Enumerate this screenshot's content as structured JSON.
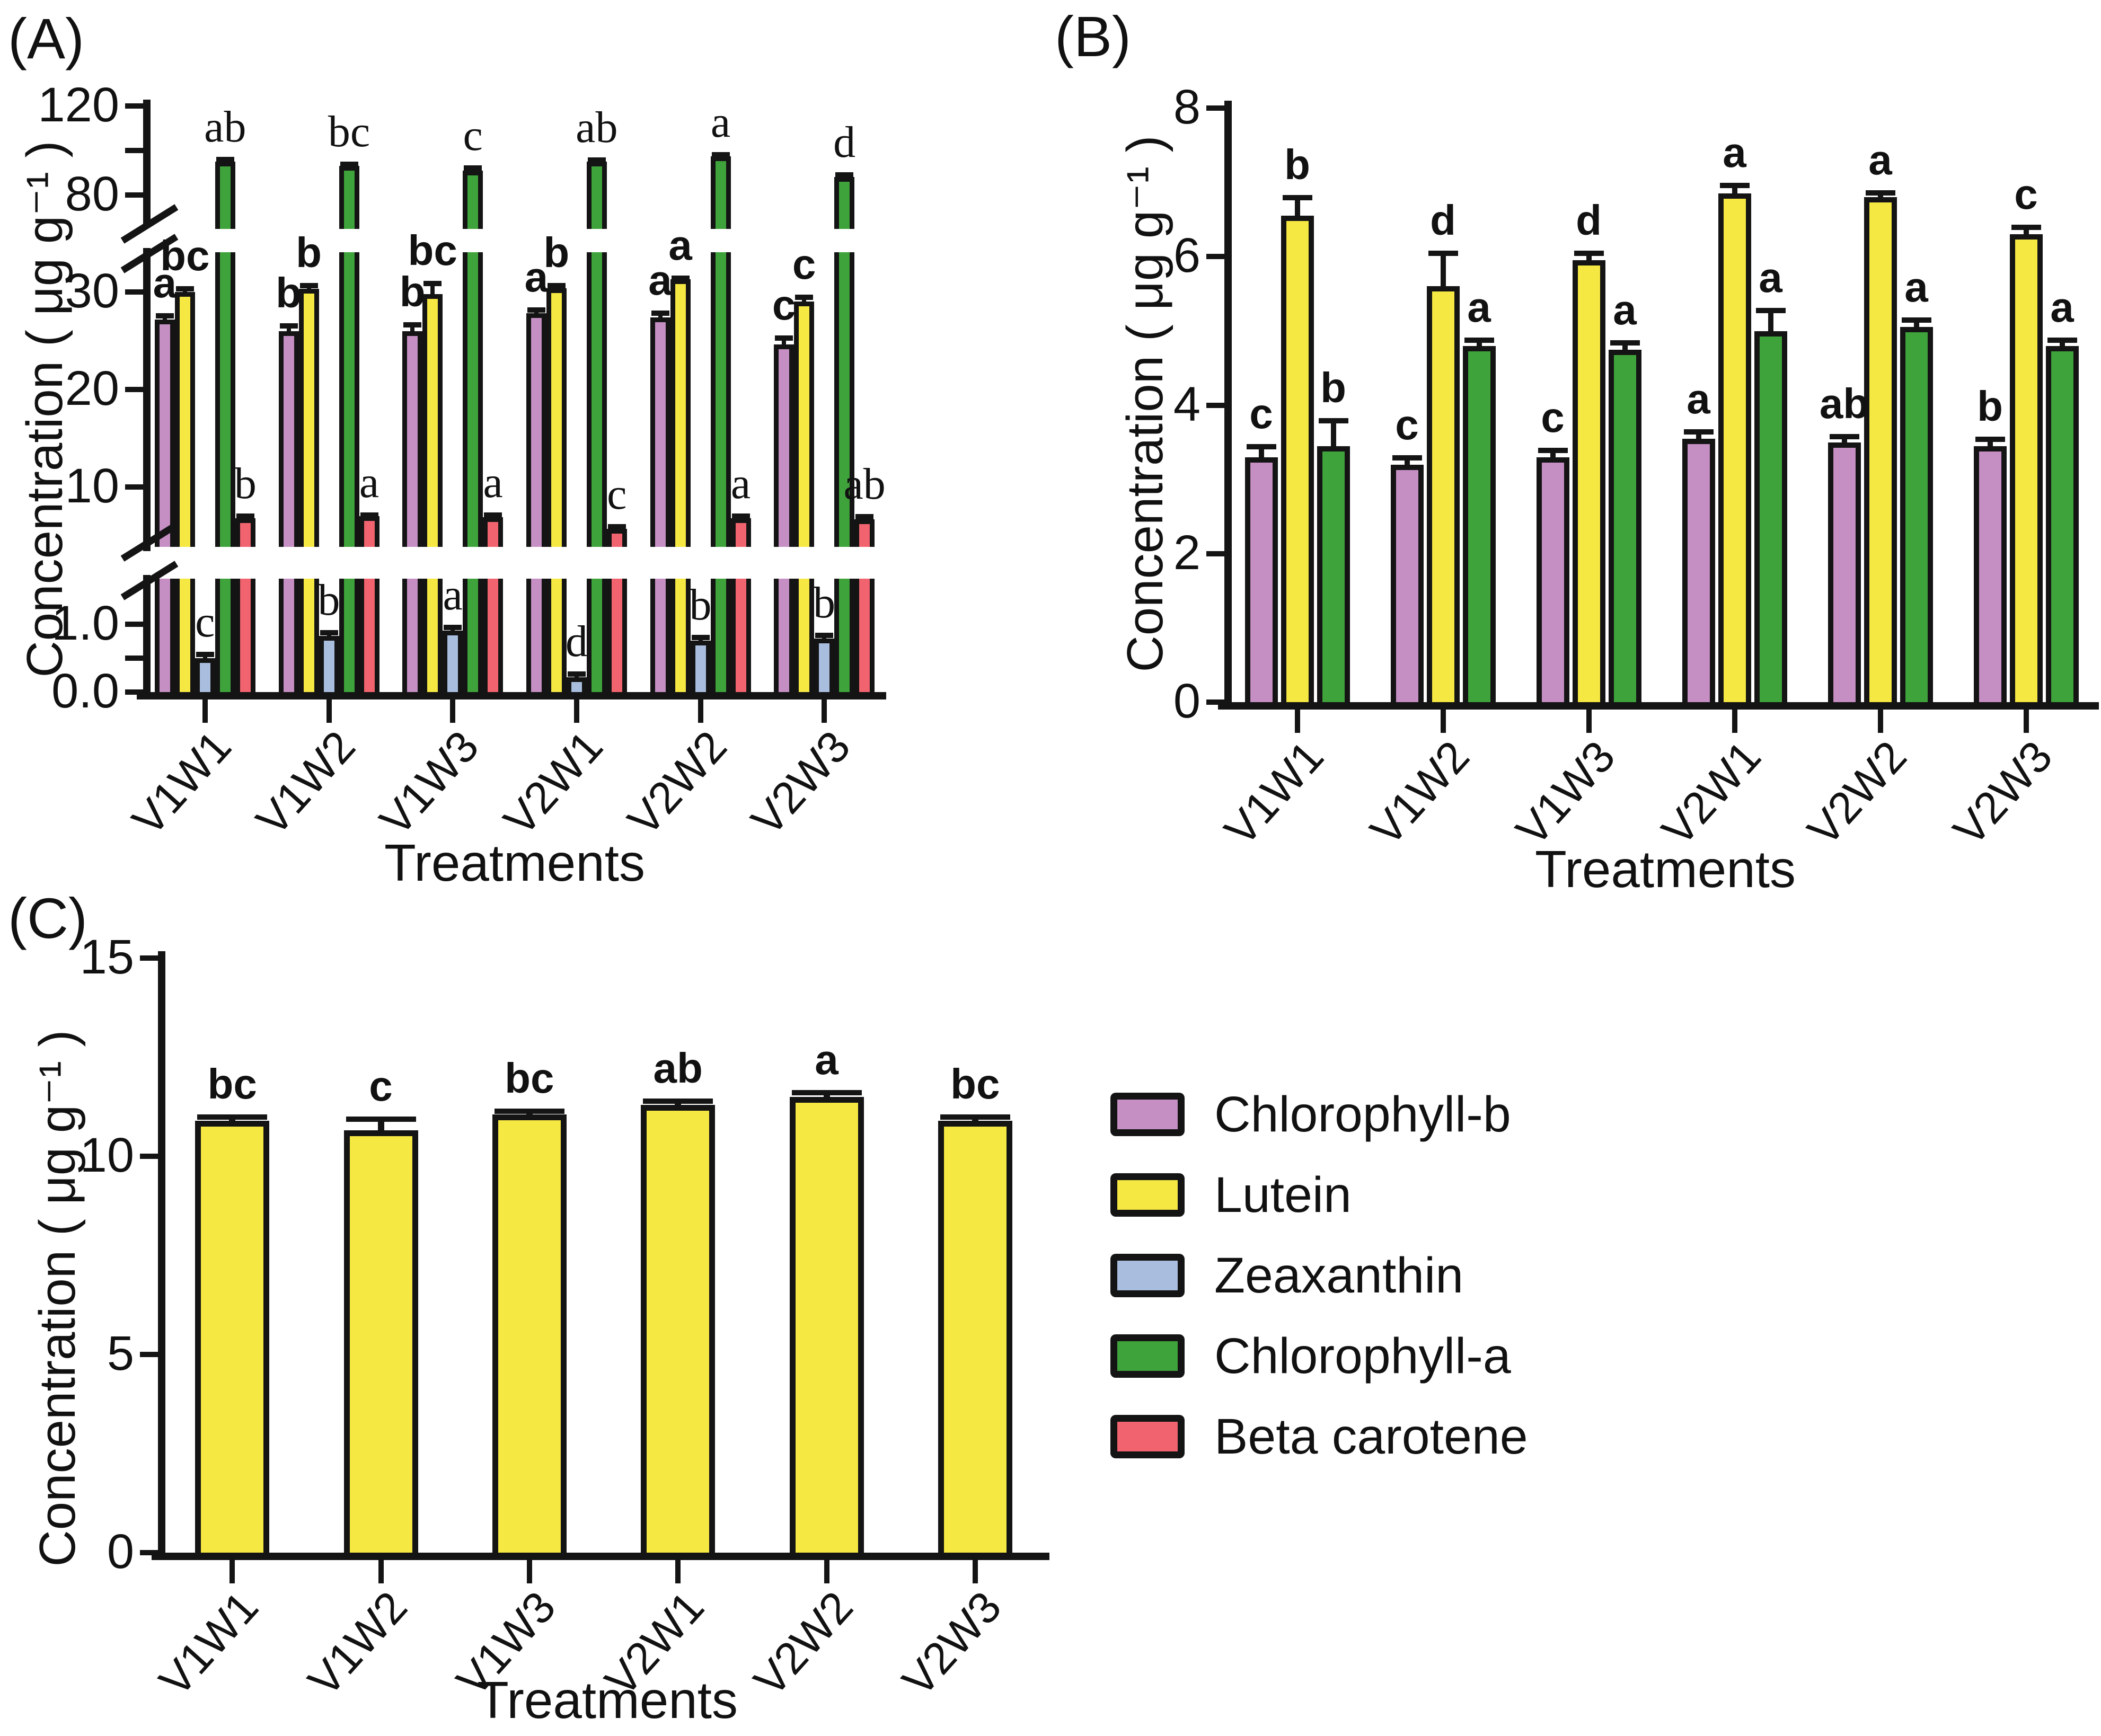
{
  "figure": {
    "background": "#ffffff",
    "ink_color": "#141414"
  },
  "legend": {
    "items": [
      {
        "label": "Chlorophyll-b",
        "color": "#c58fc3"
      },
      {
        "label": "Lutein",
        "color": "#f6e843"
      },
      {
        "label": "Zeaxanthin",
        "color": "#a9bede"
      },
      {
        "label": "Chlorophyll-a",
        "color": "#3fa33c"
      },
      {
        "label": "Beta carotene",
        "color": "#f1636e"
      }
    ]
  },
  "chart_data": [
    {
      "id": "A",
      "label": "(A)",
      "type": "bar",
      "title": "",
      "ylabel": "Concentration ( μg g⁻¹ )",
      "xlabel": "Treatments",
      "categories": [
        "V1W1",
        "V1W2",
        "V1W3",
        "V2W1",
        "V2W2",
        "V2W3"
      ],
      "axis_break": true,
      "grid": false,
      "y_segments": [
        {
          "ticks": [
            [
              120,
              "120"
            ],
            [
              100,
              ""
            ],
            [
              80,
              "80"
            ]
          ]
        },
        {
          "ticks": [
            [
              30,
              "30"
            ],
            [
              20,
              "20"
            ],
            [
              10,
              "10"
            ]
          ]
        },
        {
          "ticks": [
            [
              1.0,
              "1.0"
            ],
            [
              0.5,
              ""
            ],
            [
              0.0,
              "0.0"
            ]
          ]
        }
      ],
      "series": [
        {
          "name": "Chlorophyll-b",
          "color": "#c58fc3",
          "letter_style": "sans",
          "values": [
            27.2,
            26.0,
            26.0,
            27.8,
            27.4,
            24.6
          ],
          "errors": [
            0.4,
            0.6,
            0.7,
            0.4,
            0.5,
            0.7
          ],
          "letters": [
            "a",
            "b",
            "b",
            "a",
            "a",
            "c"
          ]
        },
        {
          "name": "Lutein",
          "color": "#f6e843",
          "letter_style": "sans",
          "values": [
            30.0,
            30.3,
            29.8,
            30.4,
            31.3,
            29.0
          ],
          "errors": [
            0.4,
            0.4,
            1.1,
            0.3,
            0.15,
            0.5
          ],
          "letters": [
            "bc",
            "b",
            "bc",
            "b",
            "a",
            "c"
          ]
        },
        {
          "name": "Zeaxanthin",
          "color": "#a9bede",
          "letter_style": "serif",
          "values": [
            0.5,
            0.83,
            0.91,
            0.22,
            0.76,
            0.79
          ],
          "errors": [
            0.06,
            0.05,
            0.05,
            0.05,
            0.05,
            0.05
          ],
          "letters": [
            "c",
            "b",
            "a",
            "d",
            "b",
            "b"
          ]
        },
        {
          "name": "Chlorophyll-a",
          "color": "#3fa33c",
          "letter_style": "serif",
          "values": [
            95.0,
            93.0,
            91.0,
            95.0,
            97.5,
            88.0
          ],
          "errors": [
            1.2,
            1.0,
            1.3,
            1.0,
            0.8,
            1.2
          ],
          "letters": [
            "ab",
            "bc",
            "c",
            "ab",
            "a",
            "d"
          ]
        },
        {
          "name": "Beta carotene",
          "color": "#f1636e",
          "letter_style": "serif",
          "values": [
            6.8,
            7.0,
            6.9,
            5.7,
            6.8,
            6.7
          ],
          "errors": [
            0.25,
            0.2,
            0.3,
            0.3,
            0.25,
            0.3
          ],
          "letters": [
            "b",
            "a",
            "a",
            "c",
            "a",
            "ab"
          ]
        }
      ]
    },
    {
      "id": "B",
      "label": "(B)",
      "type": "bar",
      "title": "",
      "ylabel": "Concentration ( μg g⁻¹ )",
      "xlabel": "Treatments",
      "categories": [
        "V1W1",
        "V1W2",
        "V1W3",
        "V2W1",
        "V2W2",
        "V2W3"
      ],
      "axis_break": false,
      "grid": false,
      "ylim": [
        0,
        8
      ],
      "y_segments": [
        {
          "ticks": [
            [
              8,
              "8"
            ],
            [
              6,
              "6"
            ],
            [
              4,
              "4"
            ],
            [
              2,
              "2"
            ],
            [
              0,
              "0"
            ]
          ]
        }
      ],
      "series": [
        {
          "name": "Chlorophyll-b",
          "color": "#c58fc3",
          "letter_style": "sans",
          "values": [
            3.3,
            3.2,
            3.3,
            3.55,
            3.5,
            3.45
          ],
          "errors": [
            0.15,
            0.1,
            0.1,
            0.1,
            0.08,
            0.1
          ],
          "letters": [
            "c",
            "c",
            "c",
            "a",
            "ab",
            "b"
          ]
        },
        {
          "name": "Lutein",
          "color": "#f6e843",
          "letter_style": "sans",
          "values": [
            6.55,
            5.6,
            5.95,
            6.85,
            6.8,
            6.3
          ],
          "errors": [
            0.25,
            0.45,
            0.1,
            0.12,
            0.07,
            0.1
          ],
          "letters": [
            "b",
            "d",
            "d",
            "a",
            "a",
            "c"
          ]
        },
        {
          "name": "Chlorophyll-a",
          "color": "#3fa33c",
          "letter_style": "sans",
          "values": [
            3.45,
            4.8,
            4.75,
            5.0,
            5.05,
            4.8
          ],
          "errors": [
            0.35,
            0.08,
            0.1,
            0.28,
            0.1,
            0.08
          ],
          "letters": [
            "b",
            "a",
            "a",
            "a",
            "a",
            "a"
          ]
        }
      ]
    },
    {
      "id": "C",
      "label": "(C)",
      "type": "bar",
      "title": "",
      "ylabel": "Concentration ( μg g⁻¹ )",
      "xlabel": "Treatments",
      "categories": [
        "V1W1",
        "V1W2",
        "V1W3",
        "V2W1",
        "V2W2",
        "V2W3"
      ],
      "axis_break": false,
      "grid": false,
      "ylim": [
        0,
        15
      ],
      "y_segments": [
        {
          "ticks": [
            [
              15,
              "15"
            ],
            [
              10,
              "10"
            ],
            [
              5,
              "5"
            ],
            [
              0,
              "0"
            ]
          ]
        }
      ],
      "series": [
        {
          "name": "Lutein",
          "color": "#f6e843",
          "letter_style": "sans",
          "values": [
            10.9,
            10.65,
            11.05,
            11.3,
            11.5,
            10.9
          ],
          "errors": [
            0.1,
            0.3,
            0.1,
            0.1,
            0.12,
            0.1
          ],
          "letters": [
            "bc",
            "c",
            "bc",
            "ab",
            "a",
            "bc"
          ]
        }
      ]
    }
  ]
}
